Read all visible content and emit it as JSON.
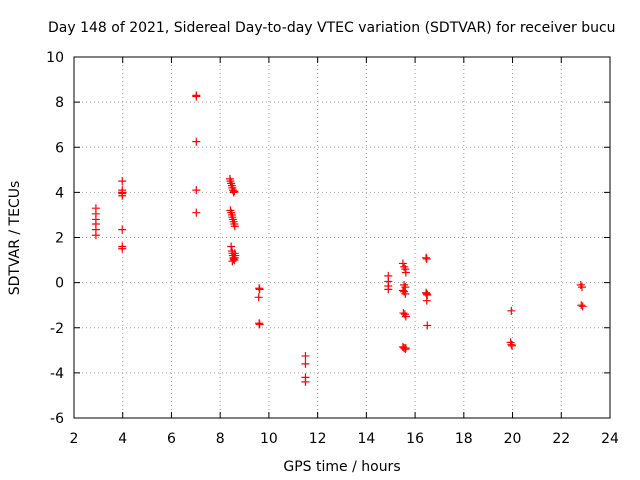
{
  "chart_data": {
    "type": "scatter",
    "title": "Day 148 of 2021, Sidereal Day-to-day VTEC variation (SDTVAR) for receiver bucu",
    "xlabel": "GPS time / hours",
    "ylabel": "SDTVAR / TECUs",
    "xlim": [
      2,
      24
    ],
    "ylim": [
      -6,
      10
    ],
    "xticks": [
      2,
      4,
      6,
      8,
      10,
      12,
      14,
      16,
      18,
      20,
      22,
      24
    ],
    "yticks": [
      -6,
      -4,
      -2,
      0,
      2,
      4,
      6,
      8,
      10
    ],
    "grid": true,
    "marker": "+",
    "marker_color": "#ff0000",
    "series": [
      {
        "name": "SDTVAR",
        "x": [
          2.9,
          2.9,
          2.9,
          2.9,
          2.9,
          2.9,
          3.98,
          3.98,
          3.98,
          3.98,
          3.98,
          3.98,
          3.98,
          3.98,
          7.02,
          7.02,
          7.02,
          7.02,
          7.02,
          8.4,
          8.42,
          8.45,
          8.48,
          8.5,
          8.52,
          8.55,
          8.58,
          8.42,
          8.45,
          8.48,
          8.5,
          8.52,
          8.55,
          8.58,
          8.6,
          8.45,
          8.48,
          8.5,
          8.52,
          8.55,
          8.58,
          8.6,
          8.62,
          8.5,
          8.55,
          8.6,
          9.6,
          9.62,
          9.58,
          9.6,
          9.62,
          11.5,
          11.5,
          11.5,
          11.5,
          14.9,
          14.9,
          14.9,
          14.9,
          15.5,
          15.55,
          15.6,
          15.62,
          15.55,
          15.6,
          15.5,
          15.55,
          15.6,
          15.52,
          15.58,
          15.62,
          15.5,
          15.55,
          15.6,
          15.62,
          16.45,
          16.48,
          16.45,
          16.48,
          16.5,
          16.48,
          16.5,
          19.95,
          19.92,
          19.95,
          19.98,
          22.8,
          22.85,
          22.82,
          22.88
        ],
        "y": [
          3.3,
          3.05,
          2.8,
          2.6,
          2.35,
          2.1,
          4.5,
          4.1,
          4.0,
          3.95,
          3.85,
          2.35,
          1.6,
          1.5,
          8.3,
          8.25,
          6.25,
          4.1,
          3.1,
          4.6,
          4.5,
          4.4,
          4.3,
          4.2,
          4.1,
          4.0,
          4.05,
          3.2,
          3.1,
          3.0,
          2.9,
          2.8,
          2.7,
          2.6,
          2.5,
          1.6,
          1.4,
          1.3,
          1.2,
          1.1,
          1.0,
          1.1,
          1.2,
          0.95,
          1.05,
          1.3,
          -0.25,
          -0.3,
          -0.65,
          -1.8,
          -1.85,
          -3.25,
          -3.6,
          -4.2,
          -4.4,
          0.3,
          0.05,
          -0.15,
          -0.3,
          0.85,
          0.7,
          0.6,
          0.45,
          -0.1,
          -0.2,
          -0.35,
          -0.4,
          -0.5,
          -1.35,
          -1.4,
          -1.5,
          -2.85,
          -2.9,
          -2.95,
          -2.9,
          1.1,
          1.05,
          -0.45,
          -0.5,
          -0.55,
          -0.8,
          -1.9,
          -1.25,
          -2.65,
          -2.75,
          -2.8,
          -0.1,
          -0.2,
          -1.0,
          -1.05
        ]
      }
    ]
  }
}
